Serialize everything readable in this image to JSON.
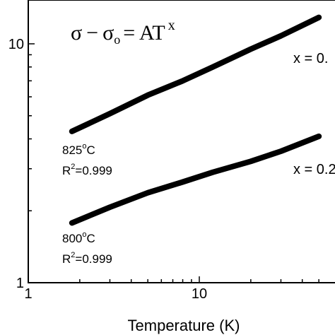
{
  "chart_data": {
    "type": "line",
    "xscale": "log",
    "yscale": "log",
    "xlim": [
      1,
      50
    ],
    "ylim": [
      1,
      15
    ],
    "xlabel": "Temperature (K)",
    "ylabel": "",
    "x_ticks": [
      {
        "value": 1,
        "label": "1"
      },
      {
        "value": 10,
        "label": "10"
      }
    ],
    "y_ticks": [
      {
        "value": 1,
        "label": "1"
      },
      {
        "value": 10,
        "label": "10"
      }
    ],
    "equation": {
      "sigma": "σ",
      "minus": "−",
      "sigma0": "σ",
      "sub": "o",
      "equals": "= AT",
      "sup": "x"
    },
    "series": [
      {
        "annotation_temp": "825",
        "annotation_temp_unit": "C",
        "degree": "o",
        "annotation_r2_prefix": "R",
        "annotation_r2_sup": "2",
        "annotation_r2_value": "=0.999",
        "fit_label": "x = 0.",
        "x": [
          1.8,
          3,
          5,
          8,
          12,
          20,
          30,
          50
        ],
        "y": [
          4.3,
          5.1,
          6.1,
          7.0,
          8.0,
          9.5,
          10.8,
          12.9
        ]
      },
      {
        "annotation_temp": "800",
        "annotation_temp_unit": "C",
        "degree": "o",
        "annotation_r2_prefix": "R",
        "annotation_r2_sup": "2",
        "annotation_r2_value": "=0.999",
        "fit_label": "x = 0.2",
        "x": [
          1.8,
          3,
          5,
          8,
          12,
          20,
          30,
          50
        ],
        "y": [
          1.78,
          2.07,
          2.38,
          2.64,
          2.9,
          3.22,
          3.55,
          4.1
        ]
      }
    ]
  }
}
